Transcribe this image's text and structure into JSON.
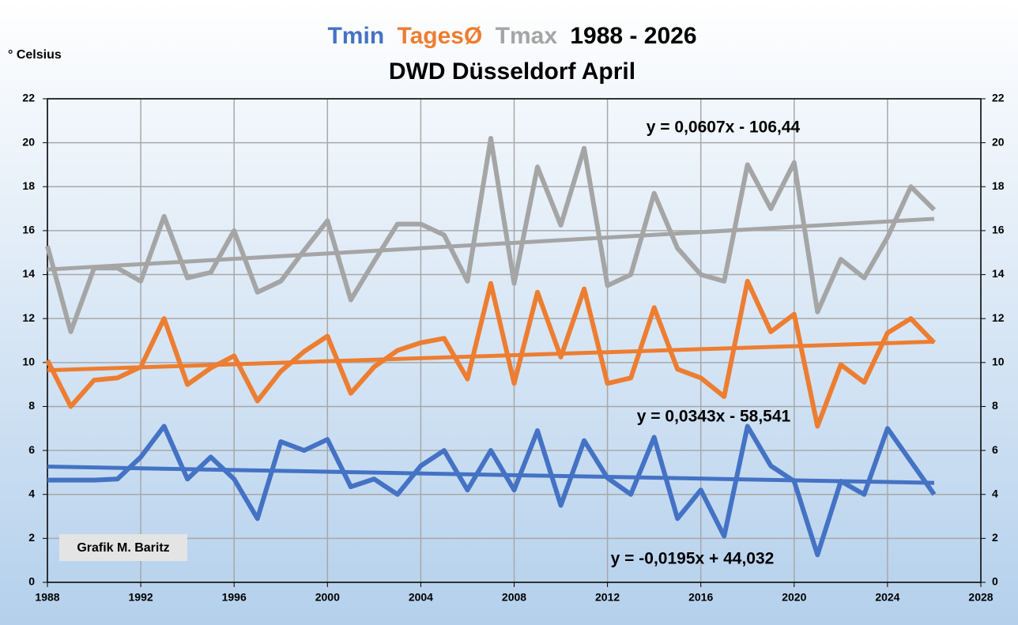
{
  "chart_data": {
    "type": "line",
    "title": "1988 - 2026",
    "subtitle": "DWD Düsseldorf April",
    "y_label": "° Celsius",
    "annotation": "Grafik M. Baritz",
    "x": [
      1988,
      1989,
      1990,
      1991,
      1992,
      1993,
      1994,
      1995,
      1996,
      1997,
      1998,
      1999,
      2000,
      2001,
      2002,
      2003,
      2004,
      2005,
      2006,
      2007,
      2008,
      2009,
      2010,
      2011,
      2012,
      2013,
      2014,
      2015,
      2016,
      2017,
      2018,
      2019,
      2020,
      2021,
      2022,
      2023,
      2024,
      2025,
      2026
    ],
    "xlim": [
      1988,
      2028
    ],
    "xticks": [
      1988,
      1992,
      1996,
      2000,
      2004,
      2008,
      2012,
      2016,
      2020,
      2024,
      2028
    ],
    "ylim": [
      0,
      22
    ],
    "yticks": [
      0,
      2,
      4,
      6,
      8,
      10,
      12,
      14,
      16,
      18,
      20,
      22
    ],
    "y2lim": [
      0,
      22
    ],
    "y2ticks": [
      0,
      2,
      4,
      6,
      8,
      10,
      12,
      14,
      16,
      18,
      20,
      22
    ],
    "grid": true,
    "series": [
      {
        "name": "Tmin",
        "color": "#4472c4",
        "values": [
          4.65,
          4.65,
          4.65,
          4.7,
          5.7,
          7.1,
          4.7,
          5.7,
          4.7,
          2.9,
          6.4,
          6.0,
          6.5,
          4.35,
          4.7,
          4.0,
          5.3,
          6.0,
          4.2,
          6.0,
          4.2,
          6.9,
          3.5,
          6.45,
          4.75,
          4.0,
          6.6,
          2.9,
          4.2,
          2.1,
          7.1,
          5.3,
          4.6,
          1.25,
          4.6,
          4.0,
          7.0,
          5.5,
          4.0
        ],
        "trend": {
          "label": "y = -0,0195x + 44,032",
          "slope": -0.0195,
          "intercept": 44.032
        }
      },
      {
        "name": "TagesØ",
        "color": "#ed7d31",
        "values": [
          10.1,
          8.0,
          9.2,
          9.3,
          9.8,
          12.0,
          9.0,
          9.75,
          10.3,
          8.25,
          9.6,
          10.5,
          11.2,
          8.6,
          9.8,
          10.55,
          10.9,
          11.1,
          9.25,
          13.6,
          9.05,
          13.2,
          10.25,
          13.35,
          9.05,
          9.3,
          12.5,
          9.7,
          9.3,
          8.45,
          13.7,
          11.4,
          12.2,
          7.1,
          9.9,
          9.1,
          11.35,
          12.0,
          10.9
        ],
        "trend": {
          "label": "y = 0,0343x - 58,541",
          "slope": 0.0343,
          "intercept": -58.541
        }
      },
      {
        "name": "Tmax",
        "color": "#a5a5a5",
        "values": [
          15.3,
          11.4,
          14.3,
          14.3,
          13.7,
          16.65,
          13.85,
          14.1,
          16.0,
          13.2,
          13.7,
          15.1,
          16.45,
          12.85,
          14.6,
          16.3,
          16.3,
          15.8,
          13.7,
          20.2,
          13.6,
          18.9,
          16.25,
          19.75,
          13.5,
          14.0,
          17.7,
          15.2,
          14.0,
          13.7,
          19.0,
          17.0,
          19.1,
          12.3,
          14.7,
          13.85,
          15.7,
          18.0,
          16.95
        ],
        "trend": {
          "label": "y = 0,0607x - 106,44",
          "slope": 0.0607,
          "intercept": -106.44
        }
      }
    ]
  }
}
